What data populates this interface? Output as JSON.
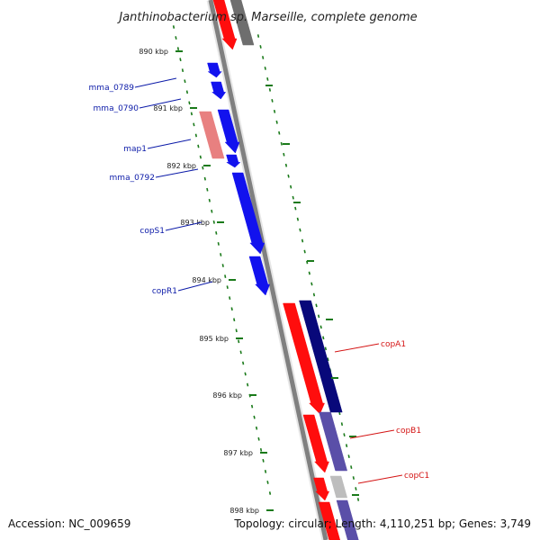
{
  "title": "Janthinobacterium sp. Marseille, complete genome",
  "footer": {
    "accession": "Accession: NC_009659",
    "summary": "Topology: circular; Length: 4,110,251 bp; Genes: 3,749"
  },
  "scale": {
    "ticks": [
      {
        "label": "890 kbp"
      },
      {
        "label": "891 kbp"
      },
      {
        "label": "892 kbp"
      },
      {
        "label": "893 kbp"
      },
      {
        "label": "894 kbp"
      },
      {
        "label": "895 kbp"
      },
      {
        "label": "896 kbp"
      },
      {
        "label": "897 kbp"
      },
      {
        "label": "898 kbp"
      }
    ]
  },
  "genes": {
    "left": [
      {
        "label": "mma_0789"
      },
      {
        "label": "mma_0790"
      },
      {
        "label": "map1"
      },
      {
        "label": "mma_0792"
      },
      {
        "label": "copS1"
      },
      {
        "label": "copR1"
      }
    ],
    "right": [
      {
        "label": "copA1"
      },
      {
        "label": "copB1"
      },
      {
        "label": "copC1"
      }
    ]
  },
  "colors": {
    "backbone": "#808080",
    "tick": "#1a7a1a",
    "left_label": "#0b1aa8",
    "right_label": "#d41414",
    "gene_blue": "#1212ee",
    "gene_red": "#ff0d0d",
    "gene_navy": "#08087a",
    "gene_pink": "#e88080",
    "gene_purple": "#5a4fa8",
    "gene_gray": "#6e6e6e",
    "gene_lightgray": "#bdbdbd"
  }
}
